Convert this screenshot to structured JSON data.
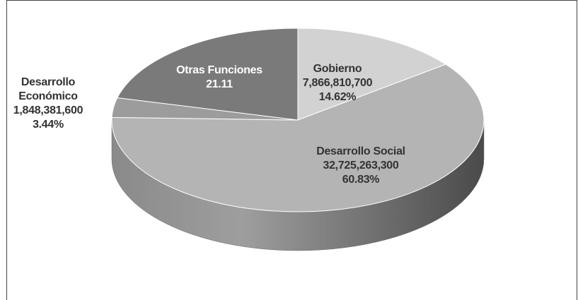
{
  "chart_data": {
    "type": "pie",
    "categories": [
      "Gobierno",
      "Desarrollo Social",
      "Desarrollo Económico",
      "Otras Funciones"
    ],
    "values": [
      14.62,
      60.83,
      3.44,
      21.11
    ],
    "value_labels": [
      "14.62%",
      "60.83%",
      "3.44%",
      "21.11"
    ],
    "amounts": [
      7866810700,
      32725263300,
      1848381600,
      null
    ],
    "amount_labels": [
      "7,866,810,700",
      "32,725,263,300",
      "1,848,381,600",
      null
    ],
    "colors": [
      "#d2d2d2",
      "#b4b4b4",
      "#9c9c9c",
      "#7a7a7a"
    ]
  }
}
